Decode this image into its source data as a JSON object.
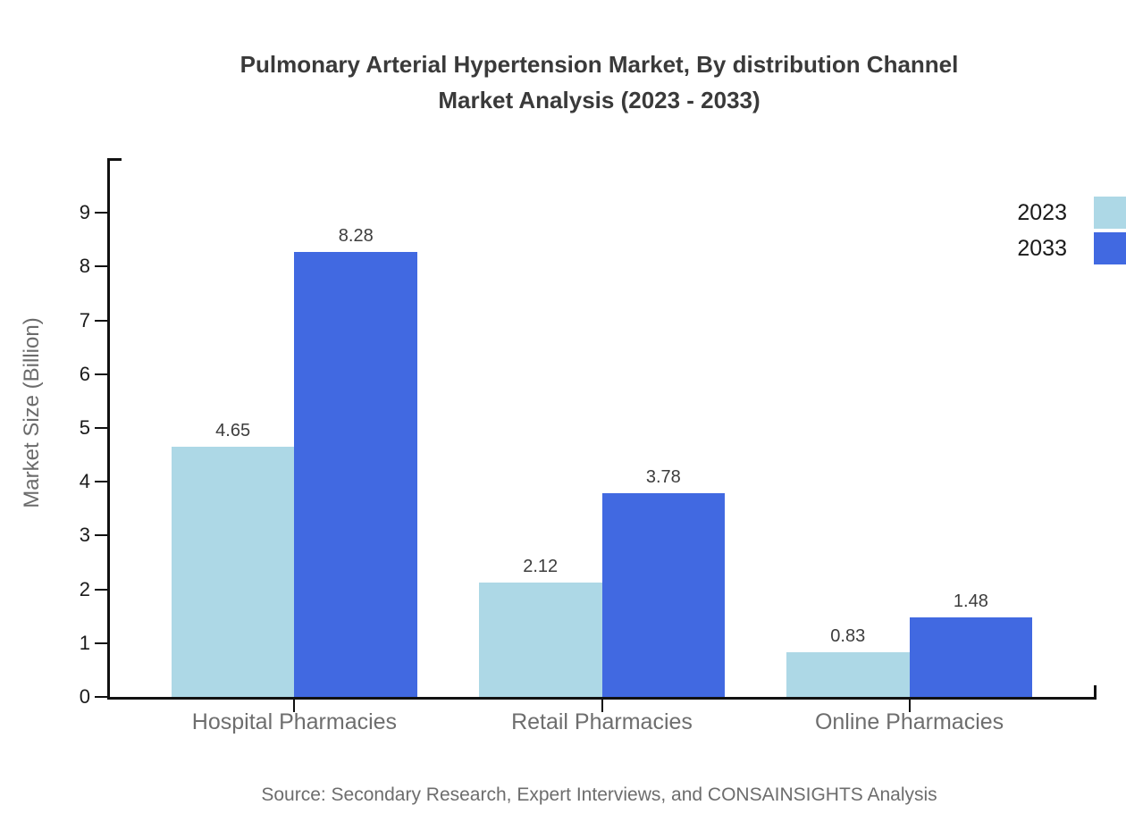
{
  "title": {
    "line1": "Pulmonary Arterial Hypertension Market, By distribution Channel",
    "line2": "Market Analysis (2023 - 2033)"
  },
  "source": "Source: Secondary Research, Expert Interviews, and CONSAINSIGHTS Analysis",
  "colors": {
    "series_2023": "#ADD8E6",
    "series_2033": "#4169E1",
    "axis": "#111111",
    "title_text": "#3A3A3A",
    "muted_text": "#6B6B6B"
  },
  "chart_data": {
    "type": "bar",
    "title": "Pulmonary Arterial Hypertension Market, By distribution Channel Market Analysis (2023 - 2033)",
    "categories": [
      "Hospital Pharmacies",
      "Retail Pharmacies",
      "Online Pharmacies"
    ],
    "series": [
      {
        "name": "2023",
        "color": "#ADD8E6",
        "values": [
          4.65,
          2.12,
          0.83
        ]
      },
      {
        "name": "2033",
        "color": "#4169E1",
        "values": [
          8.28,
          3.78,
          1.48
        ]
      }
    ],
    "xlabel": "",
    "ylabel": "Market Size (Billion)",
    "ylim": [
      0,
      10
    ],
    "yticks": [
      0,
      1,
      2,
      3,
      4,
      5,
      6,
      7,
      8,
      9
    ],
    "grid": false,
    "legend_position": "top-right",
    "value_labels": true
  }
}
